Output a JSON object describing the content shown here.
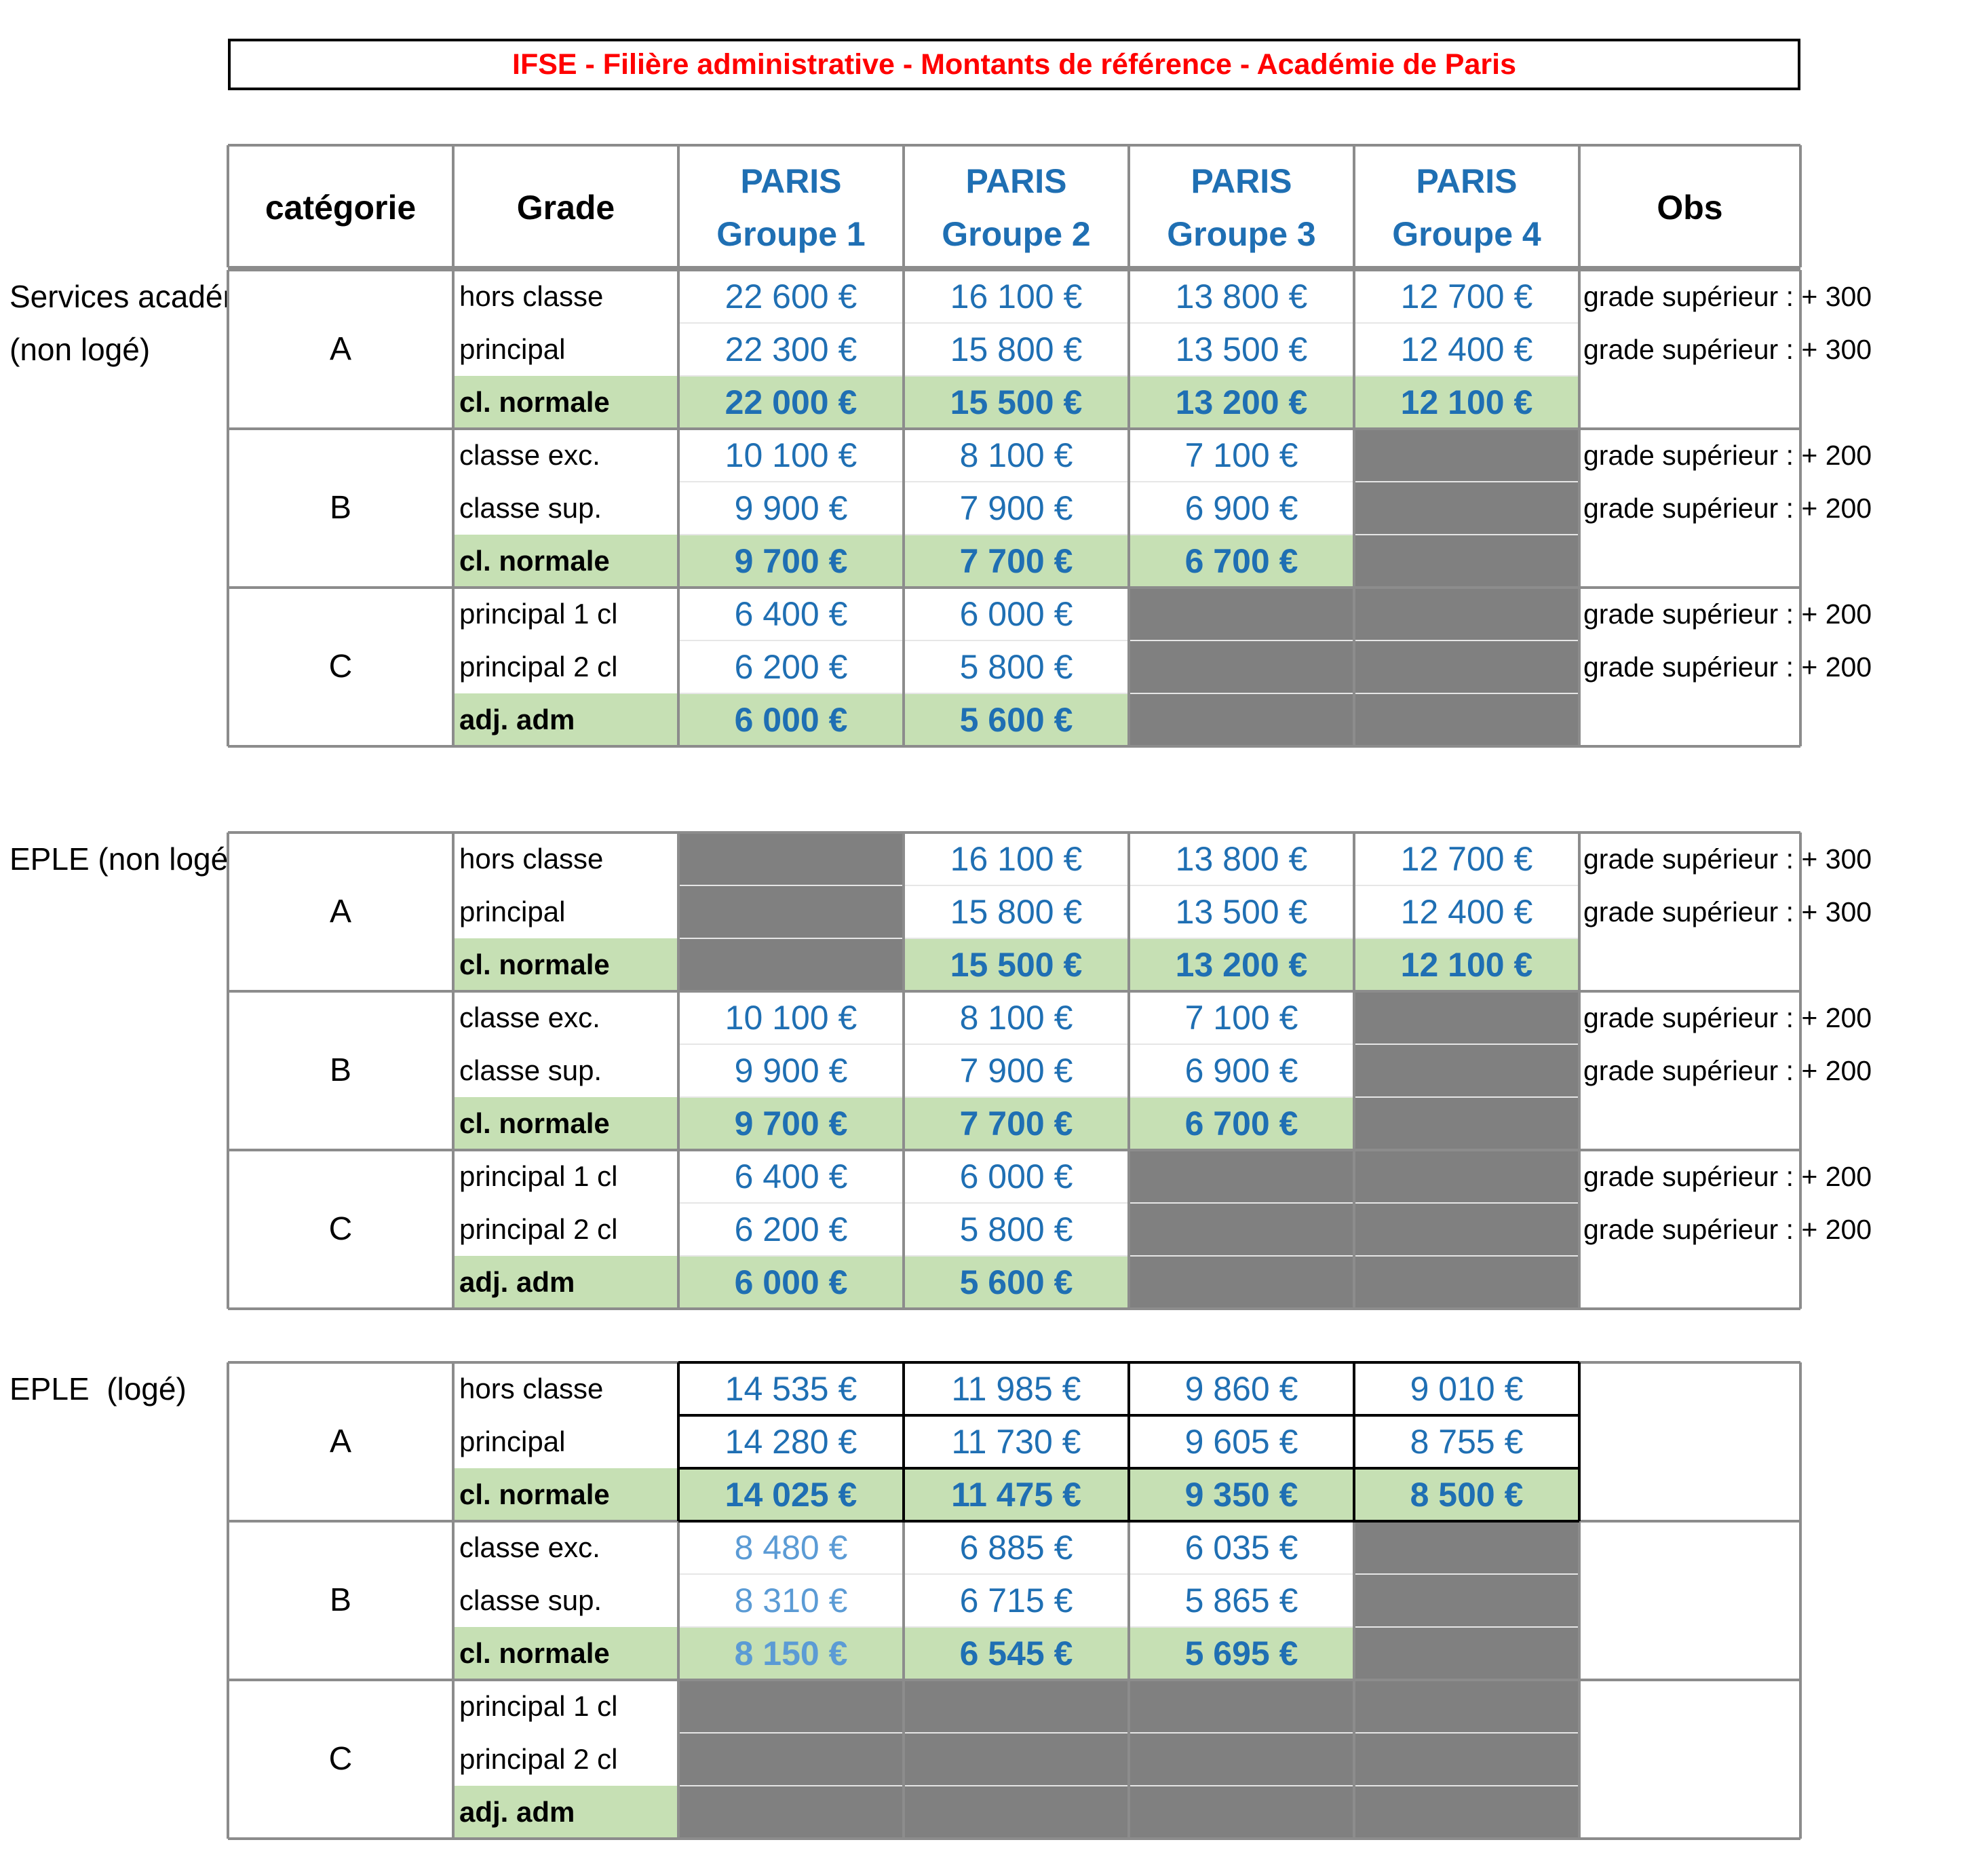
{
  "title": "IFSE - Filière administrative - Montants de référence - Académie de Paris",
  "headers": {
    "categorie": "catégorie",
    "grade": "Grade",
    "groups": [
      {
        "line1": "PARIS",
        "line2": "Groupe 1"
      },
      {
        "line1": "PARIS",
        "line2": "Groupe 2"
      },
      {
        "line1": "PARIS",
        "line2": "Groupe 3"
      },
      {
        "line1": "PARIS",
        "line2": "Groupe 4"
      }
    ],
    "obs": "Obs"
  },
  "sections": [
    {
      "label_line1": "Services académ",
      "label_line2": "(non logé)",
      "categories": [
        {
          "cat": "A",
          "rows": [
            {
              "grade": "hors classe",
              "values": [
                "22 600 €",
                "16 100 €",
                "13 800 €",
                "12 700 €"
              ],
              "obs": "grade supérieur : + 300"
            },
            {
              "grade": "principal",
              "values": [
                "22 300 €",
                "15 800 €",
                "13 500 €",
                "12 400 €"
              ],
              "obs": "grade supérieur : + 300"
            },
            {
              "grade": "cl. normale",
              "values": [
                "22 000 €",
                "15 500 €",
                "13 200 €",
                "12 100 €"
              ],
              "obs": ""
            }
          ]
        },
        {
          "cat": "B",
          "rows": [
            {
              "grade": "classe exc.",
              "values": [
                "10 100 €",
                "8 100 €",
                "7 100 €"
              ],
              "obs": "grade supérieur : + 200"
            },
            {
              "grade": "classe sup.",
              "values": [
                "9 900 €",
                "7 900 €",
                "6 900 €"
              ],
              "obs": "grade supérieur : + 200"
            },
            {
              "grade": "cl. normale",
              "values": [
                "9 700 €",
                "7 700 €",
                "6 700 €"
              ],
              "obs": ""
            }
          ]
        },
        {
          "cat": "C",
          "rows": [
            {
              "grade": "principal 1 cl",
              "values": [
                "6 400 €",
                "6 000 €"
              ],
              "obs": "grade supérieur : + 200"
            },
            {
              "grade": "principal 2 cl",
              "values": [
                "6 200 €",
                "5 800 €"
              ],
              "obs": "grade supérieur : + 200"
            },
            {
              "grade": "adj. adm",
              "values": [
                "6 000 €",
                "5 600 €"
              ],
              "obs": ""
            }
          ]
        }
      ]
    },
    {
      "label_line1": "EPLE (non logé)",
      "label_line2": "",
      "categories": [
        {
          "cat": "A",
          "rows": [
            {
              "grade": "hors classe",
              "values": [
                "",
                "16 100 €",
                "13 800 €",
                "12 700 €"
              ],
              "obs": "grade supérieur : + 300"
            },
            {
              "grade": "principal",
              "values": [
                "",
                "15 800 €",
                "13 500 €",
                "12 400 €"
              ],
              "obs": "grade supérieur : + 300"
            },
            {
              "grade": "cl. normale",
              "values": [
                "",
                "15 500 €",
                "13 200 €",
                "12 100 €"
              ],
              "obs": ""
            }
          ]
        },
        {
          "cat": "B",
          "rows": [
            {
              "grade": "classe exc.",
              "values": [
                "10 100 €",
                "8 100 €",
                "7 100 €"
              ],
              "obs": "grade supérieur : + 200"
            },
            {
              "grade": "classe sup.",
              "values": [
                "9 900 €",
                "7 900 €",
                "6 900 €"
              ],
              "obs": "grade supérieur : + 200"
            },
            {
              "grade": "cl. normale",
              "values": [
                "9 700 €",
                "7 700 €",
                "6 700 €"
              ],
              "obs": ""
            }
          ]
        },
        {
          "cat": "C",
          "rows": [
            {
              "grade": "principal 1 cl",
              "values": [
                "6 400 €",
                "6 000 €"
              ],
              "obs": "grade supérieur : + 200"
            },
            {
              "grade": "principal 2 cl",
              "values": [
                "6 200 €",
                "5 800 €"
              ],
              "obs": "grade supérieur : + 200"
            },
            {
              "grade": "adj. adm",
              "values": [
                "6 000 €",
                "5 600 €"
              ],
              "obs": ""
            }
          ]
        }
      ]
    },
    {
      "label_line1": "EPLE  (logé)",
      "label_line2": "",
      "categories": [
        {
          "cat": "A",
          "rows": [
            {
              "grade": "hors classe",
              "values": [
                "14 535 €",
                "11 985 €",
                "9 860 €",
                "9 010 €"
              ],
              "obs": ""
            },
            {
              "grade": "principal",
              "values": [
                "14 280 €",
                "11 730 €",
                "9 605 €",
                "8 755 €"
              ],
              "obs": ""
            },
            {
              "grade": "cl. normale",
              "values": [
                "14 025 €",
                "11 475 €",
                "9 350 €",
                "8 500 €"
              ],
              "obs": ""
            }
          ]
        },
        {
          "cat": "B",
          "rows": [
            {
              "grade": "classe exc.",
              "values": [
                "8 480 €",
                "6 885 €",
                "6 035 €"
              ],
              "obs": ""
            },
            {
              "grade": "classe sup.",
              "values": [
                "8 310 €",
                "6 715 €",
                "5 865 €"
              ],
              "obs": ""
            },
            {
              "grade": "cl. normale",
              "values": [
                "8 150 €",
                "6 545 €",
                "5 695 €"
              ],
              "obs": ""
            }
          ]
        },
        {
          "cat": "C",
          "rows": [
            {
              "grade": "principal 1 cl",
              "values": [],
              "obs": ""
            },
            {
              "grade": "principal 2 cl",
              "values": [],
              "obs": ""
            },
            {
              "grade": "adj. adm",
              "values": [],
              "obs": ""
            }
          ]
        }
      ]
    }
  ],
  "colors": {
    "title": "#ff0000",
    "value": "#1f6fb3",
    "value_light": "#5b9bd5",
    "highlight": "#c6e0b4",
    "empty": "#808080",
    "grid": "#8c8c8c"
  }
}
